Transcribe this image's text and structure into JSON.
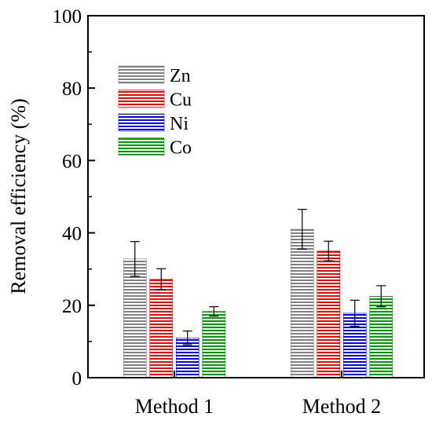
{
  "chart_data": {
    "type": "bar",
    "title": "",
    "xlabel": "",
    "ylabel": "Removal efficiency (%)",
    "ylim": [
      0,
      100
    ],
    "yticks": [
      0,
      20,
      40,
      60,
      80,
      100
    ],
    "categories": [
      "Method 1",
      "Method 2"
    ],
    "series": [
      {
        "name": "Zn",
        "color": "#808080",
        "values": [
          32.8,
          41.0
        ],
        "errors": [
          4.8,
          5.5
        ]
      },
      {
        "name": "Cu",
        "color": "#ff0000",
        "values": [
          27.2,
          35.0
        ],
        "errors": [
          2.9,
          2.7
        ]
      },
      {
        "name": "Ni",
        "color": "#0000ff",
        "values": [
          11.0,
          17.8
        ],
        "errors": [
          1.9,
          3.6
        ]
      },
      {
        "name": "Co",
        "color": "#009900",
        "values": [
          18.3,
          22.5
        ],
        "errors": [
          1.3,
          2.9
        ]
      }
    ],
    "legend_position": "top-left",
    "grid": false
  }
}
